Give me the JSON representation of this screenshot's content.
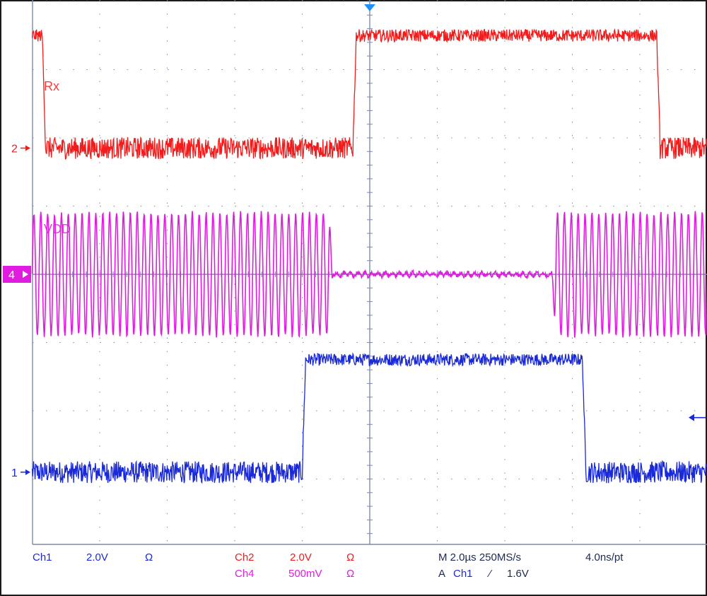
{
  "colors": {
    "ch1": "#1a2ad8",
    "ch2": "#f21c1c",
    "ch4": "#e01ce0",
    "grid": "#7d8aa8",
    "text": "#1c2a50"
  },
  "chart_data": {
    "type": "line",
    "title": "",
    "xlabel": "",
    "ylabel": "",
    "x_unit": "µs",
    "xlim": [
      -10,
      10
    ],
    "ylim": [
      -4,
      4
    ],
    "grid": true,
    "series": [
      {
        "name": "Ch1",
        "ref_marker": "1",
        "offset_div": -2.9,
        "volts_per_div": "2.0V",
        "points": [
          [
            -10,
            0
          ],
          [
            -2.0,
            0
          ],
          [
            -1.9,
            1.65
          ],
          [
            6.3,
            1.65
          ],
          [
            6.4,
            0
          ],
          [
            10,
            0
          ]
        ]
      },
      {
        "name": "Ch2",
        "ref_marker": "2",
        "offset_div": 1.85,
        "volts_per_div": "2.0V",
        "points": [
          [
            -10,
            1.65
          ],
          [
            -9.7,
            1.65
          ],
          [
            -9.6,
            0
          ],
          [
            -0.5,
            0
          ],
          [
            -0.4,
            1.65
          ],
          [
            8.5,
            1.65
          ],
          [
            8.6,
            0
          ],
          [
            10,
            0
          ]
        ]
      },
      {
        "name": "Ch4",
        "ref_marker": "4",
        "offset_div": 0,
        "volts_per_div": "500mV",
        "points": [
          [
            -10,
            1.0
          ],
          [
            -1.2,
            1.0
          ],
          [
            -1.1,
            0.03
          ],
          [
            5.4,
            0.03
          ],
          [
            5.5,
            1.0
          ],
          [
            10,
            1.0
          ]
        ]
      }
    ],
    "readout": {
      "row1": [
        "Ch1",
        "2.0V",
        "Ω",
        "Ch2",
        "2.0V",
        "Ω",
        "M 2.0µs 250MS/s",
        "4.0ns/pt"
      ],
      "row2": [
        "Ch4",
        "500mV",
        "Ω",
        "A",
        "Ch1",
        "⁄",
        "1.6V"
      ]
    },
    "annotations": [
      "Rx",
      "VDD"
    ]
  }
}
